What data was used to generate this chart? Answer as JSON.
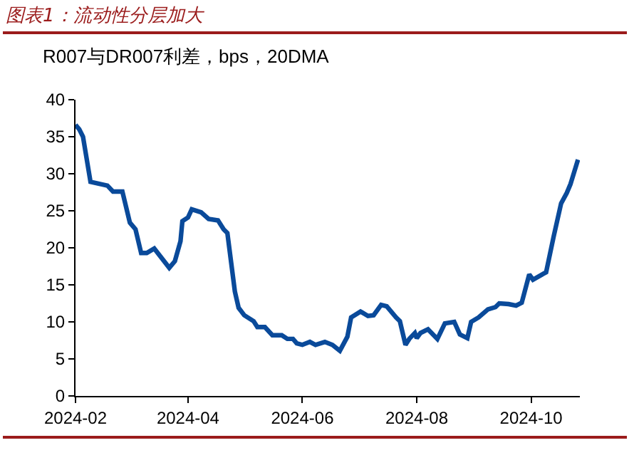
{
  "chart_data": {
    "type": "line",
    "title": "图表1：流动性分层加大",
    "subtitle": "R007与DR007利差，bps，20DMA",
    "x": [
      "2024-02-01",
      "2024-02-03",
      "2024-02-05",
      "2024-02-09",
      "2024-02-18",
      "2024-02-21",
      "2024-02-26",
      "2024-03-01",
      "2024-03-04",
      "2024-03-07",
      "2024-03-10",
      "2024-03-14",
      "2024-03-22",
      "2024-03-25",
      "2024-03-28",
      "2024-03-29",
      "2024-04-01",
      "2024-04-03",
      "2024-04-08",
      "2024-04-12",
      "2024-04-17",
      "2024-04-20",
      "2024-04-22",
      "2024-04-26",
      "2024-04-28",
      "2024-05-01",
      "2024-05-06",
      "2024-05-08",
      "2024-05-12",
      "2024-05-16",
      "2024-05-21",
      "2024-05-24",
      "2024-05-27",
      "2024-05-29",
      "2024-06-01",
      "2024-06-05",
      "2024-06-08",
      "2024-06-13",
      "2024-06-17",
      "2024-06-21",
      "2024-06-25",
      "2024-06-27",
      "2024-07-02",
      "2024-07-06",
      "2024-07-09",
      "2024-07-13",
      "2024-07-16",
      "2024-07-21",
      "2024-07-23",
      "2024-07-26",
      "2024-07-28",
      "2024-07-31",
      "2024-08-01",
      "2024-08-03",
      "2024-08-07",
      "2024-08-12",
      "2024-08-16",
      "2024-08-21",
      "2024-08-24",
      "2024-08-28",
      "2024-08-30",
      "2024-09-03",
      "2024-09-08",
      "2024-09-12",
      "2024-09-14",
      "2024-09-19",
      "2024-09-23",
      "2024-09-26",
      "2024-09-30",
      "2024-10-02",
      "2024-10-09",
      "2024-10-13",
      "2024-10-17",
      "2024-10-20",
      "2024-10-22",
      "2024-10-26"
    ],
    "series": [
      {
        "color": "#0a4a9a",
        "values": [
          36.6,
          36.0,
          35.0,
          28.9,
          28.4,
          27.6,
          27.6,
          23.4,
          22.5,
          19.3,
          19.3,
          19.9,
          17.3,
          18.2,
          20.9,
          23.6,
          24.1,
          25.2,
          24.8,
          23.9,
          23.7,
          22.5,
          22.0,
          14.1,
          11.9,
          10.9,
          10.1,
          9.3,
          9.3,
          8.2,
          8.2,
          7.7,
          7.7,
          7.1,
          6.9,
          7.3,
          6.9,
          7.3,
          6.9,
          6.1,
          8.0,
          10.6,
          11.4,
          10.8,
          10.9,
          12.3,
          12.1,
          10.6,
          10.1,
          6.9,
          7.7,
          8.5,
          7.8,
          8.5,
          9.0,
          7.7,
          9.8,
          10.0,
          8.3,
          7.8,
          10.0,
          10.6,
          11.7,
          12.0,
          12.5,
          12.4,
          12.2,
          12.6,
          16.4,
          15.7,
          16.7,
          21.5,
          26.0,
          27.4,
          28.6,
          31.9
        ]
      }
    ],
    "xlim": [
      "2024-02-01",
      "2024-10-27"
    ],
    "xticks": [
      {
        "value": "2024-02-01",
        "label": "2024-02"
      },
      {
        "value": "2024-04-01",
        "label": "2024-04"
      },
      {
        "value": "2024-06-01",
        "label": "2024-06"
      },
      {
        "value": "2024-08-01",
        "label": "2024-08"
      },
      {
        "value": "2024-10-01",
        "label": "2024-10"
      }
    ],
    "ylim": [
      0,
      40
    ],
    "yticks": [
      0,
      5,
      10,
      15,
      20,
      25,
      30,
      35,
      40
    ],
    "grid": false,
    "marker": "none",
    "line_style": "solid"
  }
}
